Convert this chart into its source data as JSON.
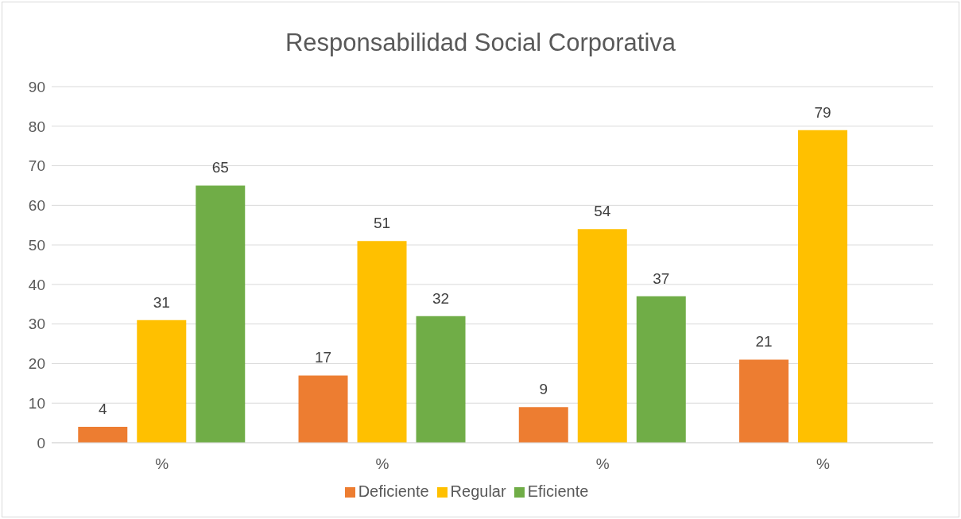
{
  "chart_data": {
    "type": "bar",
    "title": "Responsabilidad Social Corporativa",
    "categories": [
      "%",
      "%",
      "%",
      "%"
    ],
    "series": [
      {
        "name": "Deficiente",
        "color": "#ed7d31",
        "values": [
          4,
          17,
          9,
          21
        ]
      },
      {
        "name": "Regular",
        "color": "#ffc000",
        "values": [
          31,
          51,
          54,
          79
        ]
      },
      {
        "name": "Eficiente",
        "color": "#70ad47",
        "values": [
          65,
          32,
          37,
          null
        ]
      }
    ],
    "ylim": [
      0,
      90
    ],
    "yticks": [
      0,
      10,
      20,
      30,
      40,
      50,
      60,
      70,
      80,
      90
    ],
    "grid": "y",
    "legend": "bottom",
    "data_labels": true
  }
}
